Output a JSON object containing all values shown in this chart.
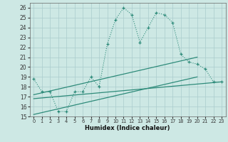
{
  "xlabel": "Humidex (Indice chaleur)",
  "main_x": [
    0,
    1,
    2,
    3,
    4,
    5,
    6,
    7,
    8,
    9,
    10,
    11,
    12,
    13,
    14,
    15,
    16,
    17,
    18,
    19,
    20,
    21,
    22,
    23
  ],
  "main_y": [
    18.8,
    17.5,
    17.5,
    15.5,
    15.5,
    17.5,
    17.5,
    19.0,
    18.0,
    22.3,
    24.8,
    26.0,
    25.3,
    22.5,
    24.0,
    25.5,
    25.3,
    24.5,
    21.3,
    20.5,
    20.3,
    19.8,
    18.5,
    18.5
  ],
  "line1_x": [
    0,
    23
  ],
  "line1_y": [
    16.8,
    18.5
  ],
  "line2_x": [
    0,
    20
  ],
  "line2_y": [
    15.2,
    19.0
  ],
  "line3_x": [
    0,
    20
  ],
  "line3_y": [
    17.2,
    21.0
  ],
  "color": "#2e8b7a",
  "bg_color": "#cde8e4",
  "grid_color": "#aacccc",
  "xlim": [
    -0.5,
    23.5
  ],
  "ylim": [
    15,
    26.5
  ],
  "yticks": [
    15,
    16,
    17,
    18,
    19,
    20,
    21,
    22,
    23,
    24,
    25,
    26
  ],
  "xticks": [
    0,
    1,
    2,
    3,
    4,
    5,
    6,
    7,
    8,
    9,
    10,
    11,
    12,
    13,
    14,
    15,
    16,
    17,
    18,
    19,
    20,
    21,
    22,
    23
  ]
}
